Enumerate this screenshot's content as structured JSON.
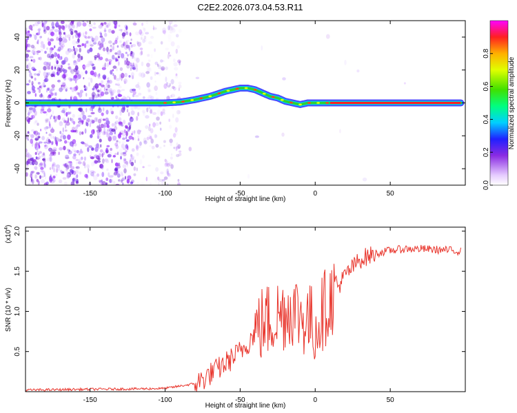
{
  "title": "C2E2.2026.073.04.53.R11",
  "colors": {
    "snr_line": "#e8332a",
    "ridge": "#1fb24a",
    "scatter": "#8a2be2",
    "axis": "#000000"
  },
  "chart_data": [
    {
      "type": "heatmap",
      "name": "spectrogram",
      "xlabel": "Height of straight line (km)",
      "ylabel": "Frequency (Hz)",
      "xlim": [
        -193,
        100
      ],
      "ylim": [
        -50,
        50
      ],
      "xticks": [
        -150,
        -100,
        -50,
        0,
        50
      ],
      "xtick_labels": [
        "-150",
        "-100",
        "-50",
        "0",
        "50"
      ],
      "yticks": [
        -40,
        -20,
        0,
        20,
        40
      ],
      "ytick_labels": [
        "-40",
        "-20",
        "0",
        "20",
        "40"
      ],
      "ridge": {
        "x": [
          -193,
          -160,
          -130,
          -120,
          -110,
          -100,
          -90,
          -80,
          -70,
          -60,
          -50,
          -45,
          -40,
          -35,
          -30,
          -25,
          -20,
          -15,
          -10,
          -5,
          0,
          5,
          10,
          20,
          50,
          97
        ],
        "y": [
          0,
          0,
          0,
          0,
          0,
          0,
          0.5,
          2,
          4,
          7,
          9,
          9,
          8,
          6,
          4,
          3,
          1,
          0,
          -1,
          0,
          0,
          0,
          0,
          0,
          0,
          0
        ]
      },
      "colorbar": {
        "label": "Normalized spectral amplitude",
        "range": [
          0,
          1
        ],
        "ticks": [
          0,
          0.2,
          0.4,
          0.6,
          0.8
        ],
        "tick_labels": [
          "0.0",
          "0.2",
          "0.4",
          "0.6",
          "0.8"
        ]
      }
    },
    {
      "type": "line",
      "name": "snr",
      "xlabel": "Height of straight line (km)",
      "ylabel": "SNR (10 * v/v)",
      "multiplier": "(x10",
      "multiplier_exp": "4",
      "multiplier_close": ")",
      "xlim": [
        -193,
        100
      ],
      "ylim": [
        0,
        20500
      ],
      "xticks": [
        -150,
        -100,
        -50,
        0,
        50
      ],
      "xtick_labels": [
        "-150",
        "-100",
        "-50",
        "0",
        "50"
      ],
      "yticks": [
        5000,
        10000,
        15000,
        20000
      ],
      "ytick_labels": [
        "0.5",
        "1.0",
        "1.5",
        "2.0"
      ],
      "series": [
        {
          "name": "SNR",
          "x": [
            -193,
            -150,
            -120,
            -100,
            -90,
            -80,
            -75,
            -70,
            -65,
            -60,
            -55,
            -50,
            -45,
            -40,
            -35,
            -30,
            -25,
            -20,
            -15,
            -10,
            -5,
            0,
            5,
            10,
            15,
            20,
            25,
            30,
            40,
            50,
            60,
            70,
            80,
            90,
            97
          ],
          "y": [
            200,
            300,
            350,
            400,
            700,
            1000,
            1500,
            2200,
            2800,
            3500,
            4200,
            5000,
            6000,
            7500,
            8500,
            9000,
            9500,
            10000,
            10500,
            9500,
            9000,
            8000,
            10000,
            11500,
            13000,
            14500,
            15500,
            16500,
            17200,
            17600,
            17800,
            17800,
            17700,
            17600,
            17500
          ]
        }
      ]
    }
  ]
}
